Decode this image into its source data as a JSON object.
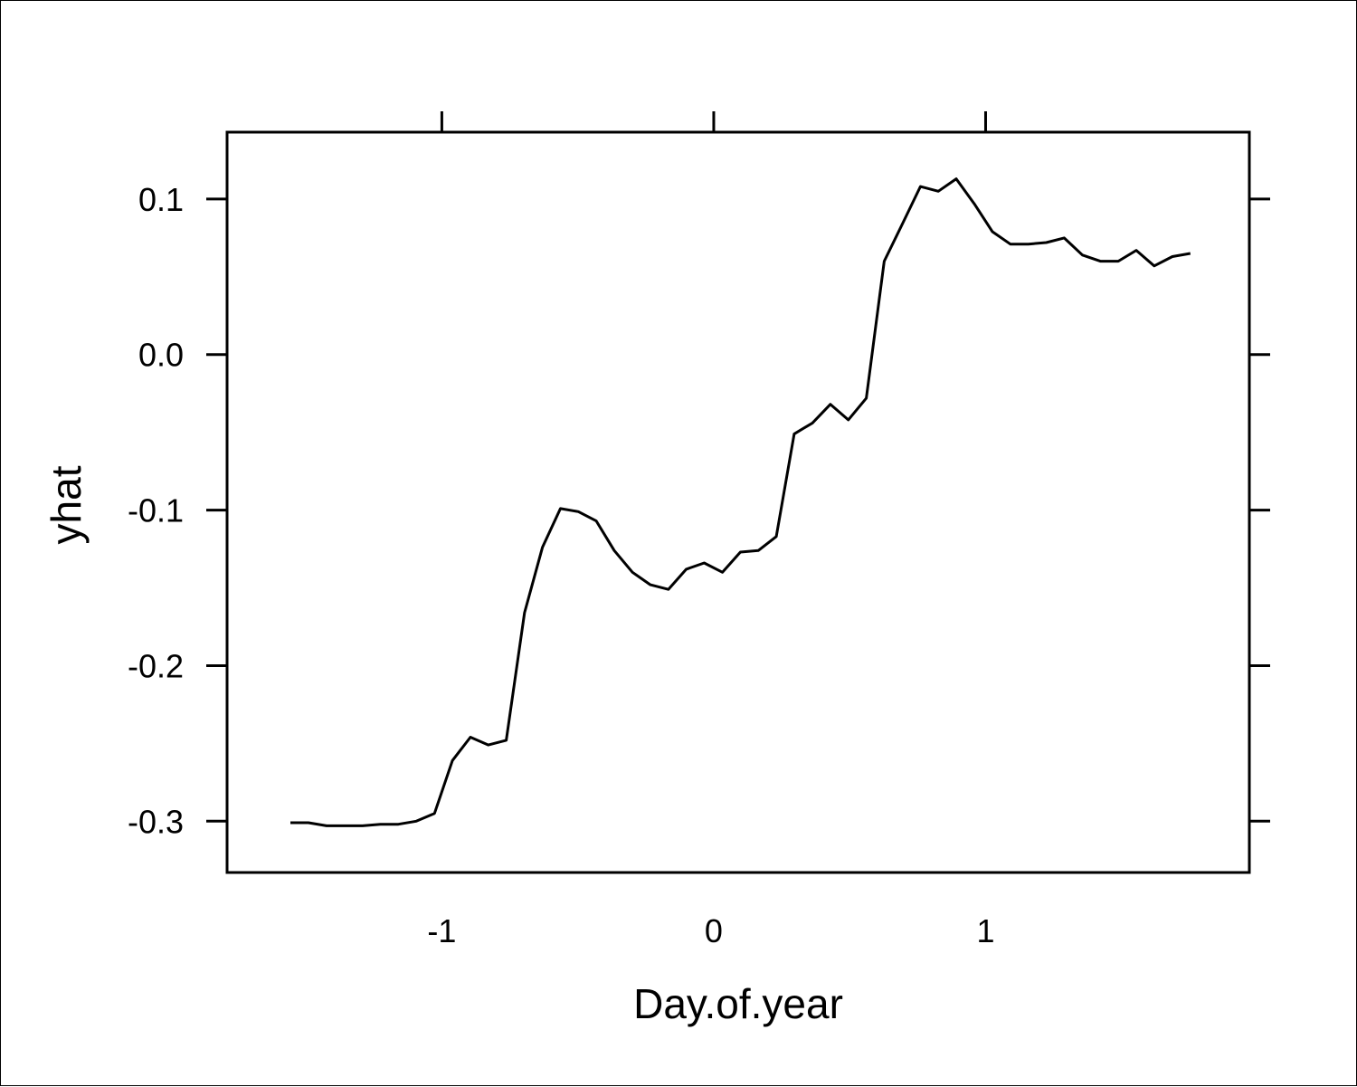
{
  "colors": {
    "background": "#ffffff",
    "line": "#000000",
    "axis": "#000000"
  },
  "chart_data": {
    "type": "line",
    "title": "",
    "xlabel": "Day.of.year",
    "ylabel": "yhat",
    "xlim": [
      -1.79,
      1.97
    ],
    "ylim": [
      -0.333,
      0.143
    ],
    "xticks": [
      -1,
      0,
      1
    ],
    "xtick_labels": [
      "-1",
      "0",
      "1"
    ],
    "yticks": [
      -0.3,
      -0.2,
      -0.1,
      0.0,
      0.1
    ],
    "ytick_labels": [
      "-0.3",
      "-0.2",
      "-0.1",
      "0.0",
      "0.1"
    ],
    "grid": false,
    "legend": "none",
    "series": [
      {
        "x": [
          -1.557,
          -1.491,
          -1.424,
          -1.358,
          -1.292,
          -1.226,
          -1.16,
          -1.094,
          -1.027,
          -0.961,
          -0.895,
          -0.829,
          -0.763,
          -0.696,
          -0.63,
          -0.564,
          -0.498,
          -0.432,
          -0.366,
          -0.299,
          -0.233,
          -0.167,
          -0.101,
          -0.035,
          0.032,
          0.098,
          0.164,
          0.23,
          0.296,
          0.363,
          0.429,
          0.495,
          0.561,
          0.627,
          0.694,
          0.76,
          0.826,
          0.892,
          0.958,
          1.025,
          1.091,
          1.157,
          1.223,
          1.289,
          1.356,
          1.422,
          1.488,
          1.554,
          1.62,
          1.687,
          1.753
        ],
        "y": [
          -0.301,
          -0.301,
          -0.303,
          -0.303,
          -0.303,
          -0.302,
          -0.302,
          -0.3,
          -0.295,
          -0.261,
          -0.246,
          -0.251,
          -0.248,
          -0.166,
          -0.124,
          -0.099,
          -0.101,
          -0.107,
          -0.126,
          -0.14,
          -0.148,
          -0.151,
          -0.138,
          -0.134,
          -0.14,
          -0.127,
          -0.126,
          -0.117,
          -0.051,
          -0.044,
          -0.032,
          -0.042,
          -0.028,
          0.06,
          0.084,
          0.108,
          0.105,
          0.113,
          0.097,
          0.079,
          0.071,
          0.071,
          0.072,
          0.075,
          0.064,
          0.06,
          0.06,
          0.067,
          0.057,
          0.063,
          0.065
        ]
      }
    ]
  }
}
